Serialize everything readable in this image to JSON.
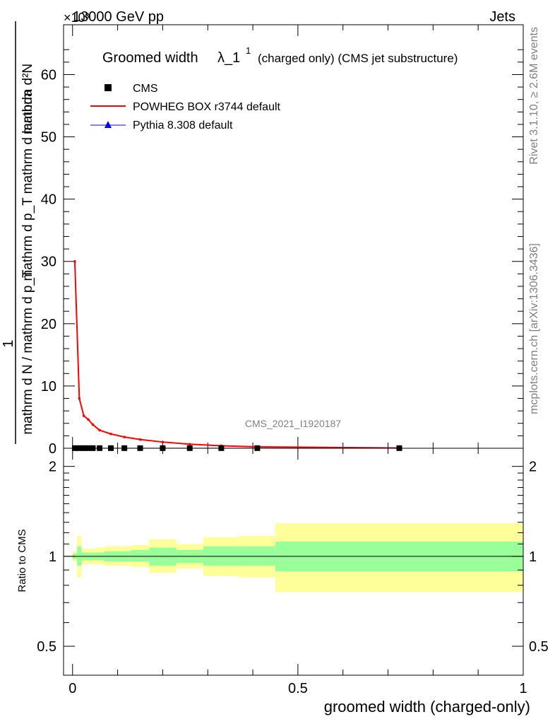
{
  "header": {
    "energy_label": "13000 GeV pp",
    "process_label": "Jets",
    "exponent_label": "×10³",
    "side_label_rivet": "Rivet 3.1.10, ≥ 2.6M events",
    "side_label_site": "mcplots.cern.ch [arXiv:1306.3436]",
    "watermark": "CMS_2021_I1920187"
  },
  "chart_data": [
    {
      "type": "line",
      "panel": "main",
      "title_main": "Groomed width",
      "title_symbol": "λ_1",
      "title_superscript": "1",
      "title_extra": "(charged only) (CMS jet substructure)",
      "ylabel_numerator": "mathrm d²N",
      "ylabel_denominator": "mathrm d p_T mathrm d lambda",
      "ylabel_prefix": "1",
      "ylabel_prefix_denominator": "mathrm d N / mathrm d p_T",
      "ylim": [
        0,
        68000
      ],
      "xlim": [
        -0.02,
        1.0
      ],
      "yticks": [
        {
          "v": 0,
          "label": "0"
        },
        {
          "v": 10000,
          "label": "10"
        },
        {
          "v": 20000,
          "label": "20"
        },
        {
          "v": 30000,
          "label": "30"
        },
        {
          "v": 40000,
          "label": "40"
        },
        {
          "v": 50000,
          "label": "50"
        },
        {
          "v": 60000,
          "label": "60"
        }
      ],
      "legend_placement": "top-left",
      "series": [
        {
          "name": "CMS",
          "marker": "square",
          "color": "#000000",
          "x": [
            0.005,
            0.015,
            0.025,
            0.035,
            0.045,
            0.06,
            0.085,
            0.115,
            0.15,
            0.2,
            0.26,
            0.33,
            0.41,
            0.725
          ],
          "values": [
            20,
            20,
            20,
            20,
            20,
            20,
            20,
            20,
            20,
            20,
            20,
            20,
            20,
            20
          ]
        },
        {
          "name": "POWHEG BOX r3744 default",
          "marker": "line",
          "color": "#ff0000",
          "x": [
            0.005,
            0.015,
            0.025,
            0.035,
            0.045,
            0.06,
            0.085,
            0.115,
            0.15,
            0.2,
            0.26,
            0.33,
            0.41,
            0.725
          ],
          "values": [
            30000,
            8000,
            5200,
            4600,
            3800,
            2900,
            2300,
            1800,
            1400,
            1000,
            650,
            400,
            230,
            40
          ]
        },
        {
          "name": "Pythia 8.308 default",
          "marker": "triangle",
          "color": "#0000ff",
          "x": [
            0.005,
            0.015,
            0.025,
            0.035,
            0.045,
            0.06,
            0.085,
            0.115,
            0.15,
            0.2,
            0.26,
            0.33,
            0.41,
            0.725
          ],
          "values": [
            20,
            20,
            20,
            20,
            20,
            20,
            20,
            20,
            20,
            20,
            20,
            20,
            20,
            20
          ]
        }
      ]
    },
    {
      "type": "area",
      "panel": "ratio",
      "ylabel": "Ratio to CMS",
      "xlabel": "groomed width (charged-only)",
      "ylim": [
        0.4,
        2.3
      ],
      "log_y": true,
      "xticks": [
        {
          "v": 0,
          "label": "0"
        },
        {
          "v": 0.5,
          "label": "0.5"
        },
        {
          "v": 1,
          "label": "1"
        }
      ],
      "yticks": [
        {
          "v": 0.5,
          "label": "0.5"
        },
        {
          "v": 1,
          "label": "1"
        },
        {
          "v": 2,
          "label": "2"
        }
      ],
      "bins": [
        {
          "lo": 0.0,
          "hi": 0.01,
          "in_lo": 0.98,
          "in_hi": 1.02,
          "out_lo": 0.96,
          "out_hi": 1.04
        },
        {
          "lo": 0.01,
          "hi": 0.02,
          "in_lo": 0.93,
          "in_hi": 1.08,
          "out_lo": 0.85,
          "out_hi": 1.17
        },
        {
          "lo": 0.02,
          "hi": 0.03,
          "in_lo": 0.97,
          "in_hi": 1.03,
          "out_lo": 0.94,
          "out_hi": 1.06
        },
        {
          "lo": 0.03,
          "hi": 0.04,
          "in_lo": 0.97,
          "in_hi": 1.03,
          "out_lo": 0.94,
          "out_hi": 1.06
        },
        {
          "lo": 0.04,
          "hi": 0.05,
          "in_lo": 0.97,
          "in_hi": 1.03,
          "out_lo": 0.94,
          "out_hi": 1.06
        },
        {
          "lo": 0.05,
          "hi": 0.07,
          "in_lo": 0.97,
          "in_hi": 1.03,
          "out_lo": 0.94,
          "out_hi": 1.07
        },
        {
          "lo": 0.07,
          "hi": 0.1,
          "in_lo": 0.96,
          "in_hi": 1.04,
          "out_lo": 0.93,
          "out_hi": 1.08
        },
        {
          "lo": 0.1,
          "hi": 0.13,
          "in_lo": 0.96,
          "in_hi": 1.04,
          "out_lo": 0.93,
          "out_hi": 1.08
        },
        {
          "lo": 0.13,
          "hi": 0.17,
          "in_lo": 0.96,
          "in_hi": 1.05,
          "out_lo": 0.92,
          "out_hi": 1.09
        },
        {
          "lo": 0.17,
          "hi": 0.23,
          "in_lo": 0.93,
          "in_hi": 1.07,
          "out_lo": 0.88,
          "out_hi": 1.14
        },
        {
          "lo": 0.23,
          "hi": 0.29,
          "in_lo": 0.95,
          "in_hi": 1.05,
          "out_lo": 0.91,
          "out_hi": 1.1
        },
        {
          "lo": 0.29,
          "hi": 0.37,
          "in_lo": 0.93,
          "in_hi": 1.08,
          "out_lo": 0.86,
          "out_hi": 1.16
        },
        {
          "lo": 0.37,
          "hi": 0.45,
          "in_lo": 0.93,
          "in_hi": 1.08,
          "out_lo": 0.85,
          "out_hi": 1.17
        },
        {
          "lo": 0.45,
          "hi": 1.0,
          "in_lo": 0.89,
          "in_hi": 1.12,
          "out_lo": 0.76,
          "out_hi": 1.29
        }
      ],
      "band_colors": {
        "inner": "#99ff99",
        "outer": "#ffff99"
      }
    }
  ]
}
